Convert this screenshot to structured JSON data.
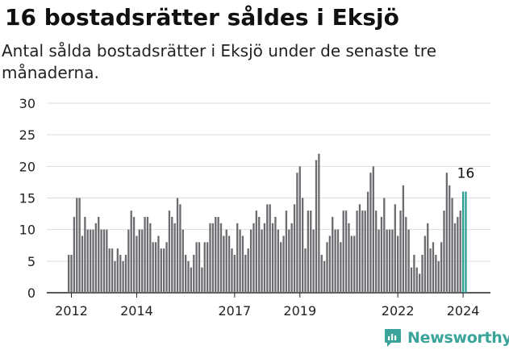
{
  "header": {
    "title": "16 bostadsrätter såldes i Eksjö",
    "subtitle": "Antal sålda bostadsrätter i Eksjö under de senaste tre månaderna."
  },
  "brand": {
    "name": "Newsworthy",
    "icon": "newsworthy-logo-icon",
    "color": "#3aa39a"
  },
  "colors": {
    "bar": "#6b6b70",
    "highlight": "#2a9d8f",
    "grid": "#dddddd",
    "axis": "#222222"
  },
  "chart_data": {
    "type": "bar",
    "title": "16 bostadsrätter såldes i Eksjö",
    "subtitle": "Antal sålda bostadsrätter i Eksjö under de senaste tre månaderna.",
    "xlabel": "",
    "ylabel": "",
    "ylim": [
      0,
      30
    ],
    "yticks": [
      0,
      5,
      10,
      15,
      20,
      25,
      30
    ],
    "grid": true,
    "legend": "none",
    "x_ticks": [
      {
        "label": "2012",
        "index": 1
      },
      {
        "label": "2014",
        "index": 25
      },
      {
        "label": "2017",
        "index": 61
      },
      {
        "label": "2019",
        "index": 85
      },
      {
        "label": "2022",
        "index": 121
      },
      {
        "label": "2024",
        "index": 145
      }
    ],
    "values": [
      6,
      6,
      12,
      15,
      15,
      9,
      12,
      10,
      10,
      10,
      11,
      12,
      10,
      10,
      10,
      7,
      7,
      5,
      7,
      6,
      5,
      6,
      10,
      13,
      12,
      9,
      10,
      10,
      12,
      12,
      11,
      8,
      8,
      9,
      7,
      7,
      8,
      13,
      12,
      11,
      15,
      14,
      10,
      6,
      5,
      4,
      6,
      8,
      8,
      4,
      8,
      8,
      11,
      11,
      12,
      12,
      11,
      9,
      10,
      9,
      7,
      6,
      11,
      10,
      9,
      6,
      7,
      10,
      11,
      13,
      12,
      10,
      11,
      14,
      14,
      11,
      12,
      10,
      8,
      9,
      13,
      10,
      11,
      14,
      19,
      20,
      15,
      7,
      13,
      13,
      10,
      21,
      22,
      6,
      5,
      8,
      9,
      12,
      10,
      10,
      8,
      13,
      13,
      11,
      9,
      9,
      13,
      14,
      13,
      13,
      16,
      19,
      20,
      13,
      10,
      12,
      15,
      10,
      10,
      10,
      14,
      9,
      13,
      17,
      12,
      10,
      4,
      6,
      4,
      3,
      6,
      9,
      11,
      7,
      8,
      6,
      5,
      8,
      13,
      19,
      17,
      15,
      11,
      12,
      13,
      16,
      16
    ],
    "highlight_last": 2,
    "annotation": {
      "text": "16",
      "index": 146
    }
  }
}
